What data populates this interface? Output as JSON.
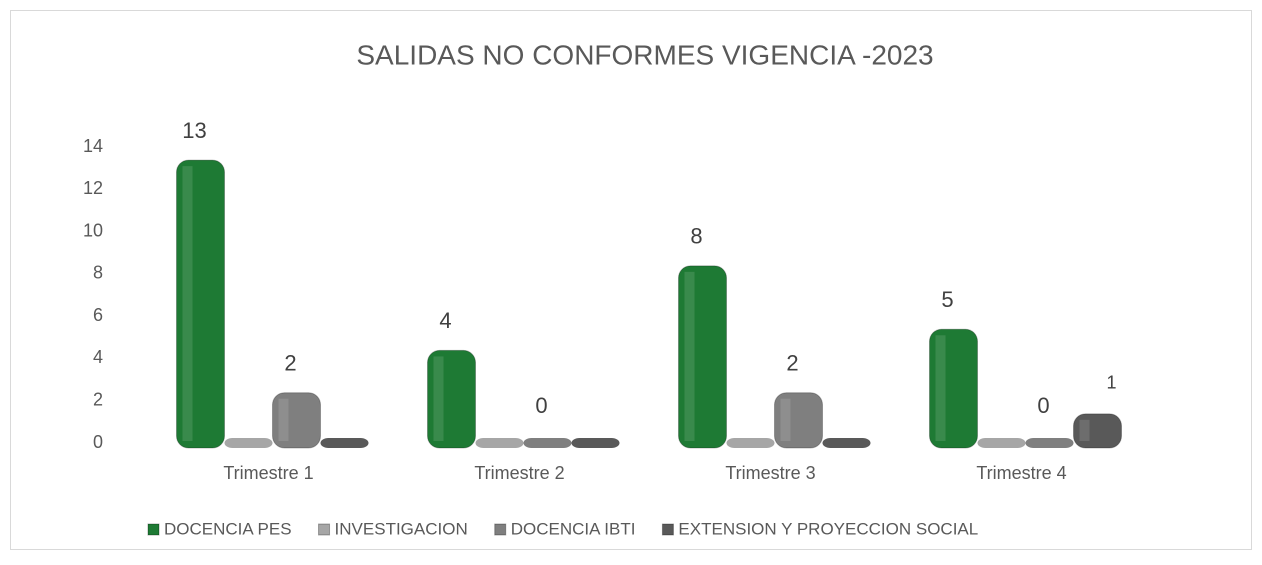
{
  "chart_data": {
    "type": "bar",
    "title": "SALIDAS NO CONFORMES VIGENCIA -2023",
    "categories": [
      "Trimestre 1",
      "Trimestre 2",
      "Trimestre 3",
      "Trimestre 4"
    ],
    "series": [
      {
        "name": "DOCENCIA PES",
        "color": "#1e7a34",
        "values": [
          13,
          4,
          8,
          5
        ],
        "value_labels": [
          "13",
          "4",
          "8",
          "5"
        ]
      },
      {
        "name": "INVESTIGACION",
        "color": "#a6a6a6",
        "values": [
          0,
          0,
          0,
          0
        ],
        "value_labels": [
          null,
          null,
          null,
          null
        ]
      },
      {
        "name": "DOCENCIA IBTI",
        "color": "#7f7f7f",
        "values": [
          2,
          0,
          2,
          0
        ],
        "value_labels": [
          "2",
          "0",
          "2",
          "0"
        ]
      },
      {
        "name": "EXTENSION Y PROYECCION SOCIAL",
        "color": "#595959",
        "values": [
          0,
          0,
          0,
          1
        ],
        "value_labels": [
          null,
          null,
          null,
          "1"
        ]
      }
    ],
    "ylim": [
      0,
      14
    ],
    "yticks": [
      0,
      2,
      4,
      6,
      8,
      10,
      12,
      14
    ],
    "grid": false,
    "legend": "bottom"
  }
}
